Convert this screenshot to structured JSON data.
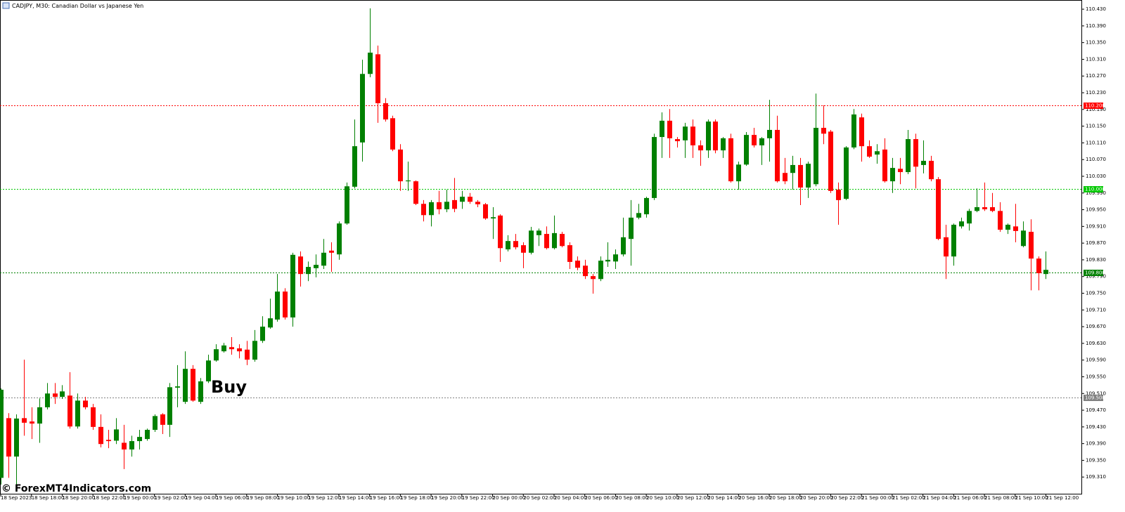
{
  "chart_data": {
    "type": "candlestick",
    "title": "CADJPY, M30:  Canadian Dollar vs Japanese Yen",
    "up_color": "#008000",
    "down_color": "#ff0000",
    "open": [
      109.308,
      109.451,
      109.359,
      109.451,
      109.443,
      109.438,
      109.477,
      109.51,
      109.502,
      109.505,
      109.431,
      109.493,
      109.477,
      109.43,
      109.399,
      109.397,
      109.392,
      109.376,
      109.396,
      109.401,
      109.423,
      109.46,
      109.435,
      109.524,
      109.49,
      109.569,
      109.49,
      109.539,
      109.589,
      109.611,
      109.621,
      109.618,
      109.615,
      109.591,
      109.636,
      109.668,
      109.687,
      109.754,
      109.692,
      109.838,
      109.796,
      109.81,
      109.816,
      109.852,
      109.843,
      109.917,
      110.005,
      110.111,
      110.275,
      110.322,
      110.205,
      110.169,
      110.094,
      110.018,
      110.018,
      109.964,
      109.937,
      109.968,
      109.951,
      109.973,
      109.969,
      109.981,
      109.969,
      109.963,
      109.929,
      109.936,
      109.855,
      109.875,
      109.865,
      109.847,
      109.889,
      109.892,
      109.858,
      109.892,
      109.865,
      109.828,
      109.816,
      109.791,
      109.784,
      109.826,
      109.826,
      109.843,
      109.88,
      109.931,
      109.939,
      109.978,
      110.124,
      110.163,
      110.119,
      110.116,
      110.149,
      110.104,
      110.092,
      110.161,
      110.092,
      110.121,
      110.018,
      110.058,
      110.129,
      110.104,
      110.121,
      110.141,
      110.038,
      110.038,
      110.057,
      110.003,
      110.011,
      110.146,
      110.137,
      109.998,
      109.976,
      110.099,
      110.171,
      110.102,
      110.082,
      110.094,
      110.018,
      110.048,
      110.04,
      110.119,
      110.057,
      110.067,
      110.023,
      109.884,
      109.838,
      109.91,
      109.917,
      109.947,
      109.956,
      109.956,
      109.947,
      109.902,
      109.91,
      109.863,
      109.897,
      109.833,
      109.796
    ],
    "high": [
      109.522,
      109.463,
      109.46,
      109.591,
      109.477,
      109.498,
      109.535,
      109.535,
      109.53,
      109.561,
      109.51,
      109.502,
      109.485,
      109.46,
      109.423,
      109.451,
      109.435,
      109.409,
      109.423,
      109.426,
      109.46,
      109.463,
      109.535,
      109.578,
      109.611,
      109.578,
      109.547,
      109.603,
      109.628,
      109.631,
      109.645,
      109.628,
      109.636,
      109.662,
      109.695,
      109.737,
      109.796,
      109.762,
      109.847,
      109.85,
      109.826,
      109.843,
      109.88,
      109.872,
      109.922,
      110.015,
      110.166,
      110.309,
      110.432,
      110.343,
      110.217,
      110.175,
      110.107,
      110.065,
      110.02,
      109.973,
      109.973,
      109.995,
      109.998,
      110.026,
      109.995,
      109.99,
      109.973,
      109.966,
      109.956,
      109.939,
      109.889,
      109.892,
      109.872,
      109.909,
      109.905,
      109.91,
      109.936,
      109.897,
      109.872,
      109.838,
      109.83,
      109.796,
      109.838,
      109.872,
      109.855,
      109.931,
      109.973,
      109.964,
      109.981,
      110.132,
      110.183,
      110.191,
      110.124,
      110.158,
      110.166,
      110.116,
      110.166,
      110.166,
      110.124,
      110.132,
      110.065,
      110.136,
      110.146,
      110.124,
      110.213,
      110.175,
      110.074,
      110.079,
      110.074,
      110.065,
      110.228,
      110.2,
      110.141,
      110.015,
      110.102,
      110.191,
      110.18,
      110.116,
      110.107,
      110.121,
      110.074,
      110.074,
      110.141,
      110.132,
      110.116,
      110.079,
      110.028,
      109.914,
      109.917,
      109.931,
      109.952,
      110.001,
      110.015,
      109.99,
      109.968,
      109.917,
      109.964,
      109.922,
      109.927,
      109.838,
      109.85
    ],
    "low": [
      109.292,
      109.308,
      109.292,
      109.409,
      109.401,
      109.392,
      109.472,
      109.485,
      109.497,
      109.426,
      109.426,
      109.472,
      109.423,
      109.381,
      109.379,
      109.389,
      109.329,
      109.359,
      109.376,
      109.397,
      109.418,
      109.413,
      109.406,
      109.477,
      109.485,
      109.49,
      109.485,
      109.535,
      109.586,
      109.608,
      109.603,
      109.594,
      109.578,
      109.586,
      109.631,
      109.665,
      109.682,
      109.687,
      109.67,
      109.766,
      109.779,
      109.788,
      109.808,
      109.801,
      109.83,
      109.914,
      110.001,
      110.065,
      110.267,
      110.158,
      110.161,
      110.09,
      109.995,
      109.995,
      109.961,
      109.922,
      109.91,
      109.939,
      109.944,
      109.944,
      109.952,
      109.964,
      109.956,
      109.926,
      109.88,
      109.825,
      109.85,
      109.855,
      109.81,
      109.843,
      109.863,
      109.855,
      109.855,
      109.86,
      109.808,
      109.805,
      109.784,
      109.749,
      109.779,
      109.813,
      109.808,
      109.838,
      109.816,
      109.927,
      109.931,
      109.973,
      110.074,
      110.074,
      110.099,
      110.074,
      110.074,
      110.055,
      110.074,
      110.085,
      110.074,
      110.015,
      109.998,
      110.055,
      110.099,
      110.057,
      110.065,
      110.015,
      110.011,
      109.998,
      109.961,
      109.978,
      110.006,
      110.107,
      109.99,
      109.914,
      109.973,
      110.095,
      110.065,
      110.074,
      110.06,
      110.015,
      109.99,
      110.011,
      110.035,
      110.001,
      110.037,
      110.018,
      109.877,
      109.784,
      109.816,
      109.905,
      109.9,
      109.944,
      109.947,
      109.944,
      109.897,
      109.892,
      109.872,
      109.86,
      109.757,
      109.757,
      109.784
    ],
    "close": [
      109.519,
      109.359,
      109.45,
      109.44,
      109.438,
      109.477,
      109.51,
      109.502,
      109.515,
      109.431,
      109.493,
      109.477,
      109.43,
      109.389,
      109.396,
      109.424,
      109.376,
      109.396,
      109.406,
      109.423,
      109.456,
      109.435,
      109.525,
      109.527,
      109.569,
      109.493,
      109.539,
      109.589,
      109.616,
      109.625,
      109.616,
      109.611,
      109.591,
      109.636,
      109.67,
      109.69,
      109.754,
      109.692,
      109.842,
      109.796,
      109.813,
      109.818,
      109.847,
      109.847,
      109.917,
      110.006,
      110.102,
      110.275,
      110.326,
      110.205,
      110.166,
      110.094,
      110.018,
      110.02,
      109.964,
      109.937,
      109.968,
      109.951,
      109.969,
      109.952,
      109.981,
      109.969,
      109.963,
      109.929,
      109.932,
      109.858,
      109.875,
      109.86,
      109.847,
      109.9,
      109.9,
      109.858,
      109.894,
      109.863,
      109.825,
      109.811,
      109.791,
      109.784,
      109.828,
      109.83,
      109.843,
      109.884,
      109.931,
      109.942,
      109.978,
      110.124,
      110.163,
      110.121,
      110.114,
      110.149,
      110.104,
      110.092,
      110.161,
      110.092,
      110.121,
      110.018,
      110.058,
      110.129,
      110.104,
      110.121,
      110.141,
      110.018,
      110.018,
      110.057,
      110.003,
      110.06,
      110.146,
      110.132,
      109.995,
      109.973,
      110.099,
      110.178,
      110.102,
      110.077,
      110.09,
      110.018,
      110.05,
      110.04,
      110.119,
      110.053,
      110.067,
      110.023,
      109.88,
      109.838,
      109.914,
      109.922,
      109.947,
      109.956,
      109.951,
      109.947,
      109.902,
      109.914,
      109.899,
      109.9,
      109.833,
      109.798,
      109.806
    ],
    "ylim": [
      109.27,
      110.452
    ],
    "yticks": [
      {
        "value": 110.43,
        "label": "110.430"
      },
      {
        "value": 110.39,
        "label": "110.390"
      },
      {
        "value": 110.35,
        "label": "110.350"
      },
      {
        "value": 110.31,
        "label": "110.310"
      },
      {
        "value": 110.27,
        "label": "110.270"
      },
      {
        "value": 110.23,
        "label": "110.230"
      },
      {
        "value": 110.19,
        "label": "110.190"
      },
      {
        "value": 110.15,
        "label": "110.150"
      },
      {
        "value": 110.11,
        "label": "110.110"
      },
      {
        "value": 110.07,
        "label": "110.070"
      },
      {
        "value": 110.03,
        "label": "110.030"
      },
      {
        "value": 109.99,
        "label": "109.990"
      },
      {
        "value": 109.95,
        "label": "109.950"
      },
      {
        "value": 109.91,
        "label": "109.910"
      },
      {
        "value": 109.87,
        "label": "109.870"
      },
      {
        "value": 109.83,
        "label": "109.830"
      },
      {
        "value": 109.79,
        "label": "109.790"
      },
      {
        "value": 109.75,
        "label": "109.750"
      },
      {
        "value": 109.71,
        "label": "109.710"
      },
      {
        "value": 109.67,
        "label": "109.670"
      },
      {
        "value": 109.63,
        "label": "109.630"
      },
      {
        "value": 109.59,
        "label": "109.590"
      },
      {
        "value": 109.55,
        "label": "109.550"
      },
      {
        "value": 109.51,
        "label": "109.510"
      },
      {
        "value": 109.47,
        "label": "109.470"
      },
      {
        "value": 109.43,
        "label": "109.430"
      },
      {
        "value": 109.39,
        "label": "109.390"
      },
      {
        "value": 109.35,
        "label": "109.350"
      },
      {
        "value": 109.31,
        "label": "109.310"
      }
    ],
    "xticks": [
      {
        "value": 0,
        "label": "18 Sep 2023"
      },
      {
        "value": 4,
        "label": "18 Sep 18:00"
      },
      {
        "value": 8,
        "label": "18 Sep 20:00"
      },
      {
        "value": 12,
        "label": "18 Sep 22:00"
      },
      {
        "value": 16,
        "label": "19 Sep 00:00"
      },
      {
        "value": 20,
        "label": "19 Sep 02:00"
      },
      {
        "value": 24,
        "label": "19 Sep 04:00"
      },
      {
        "value": 28,
        "label": "19 Sep 06:00"
      },
      {
        "value": 32,
        "label": "19 Sep 08:00"
      },
      {
        "value": 36,
        "label": "19 Sep 10:00"
      },
      {
        "value": 40,
        "label": "19 Sep 12:00"
      },
      {
        "value": 44,
        "label": "19 Sep 14:00"
      },
      {
        "value": 48,
        "label": "19 Sep 16:00"
      },
      {
        "value": 52,
        "label": "19 Sep 18:00"
      },
      {
        "value": 56,
        "label": "19 Sep 20:00"
      },
      {
        "value": 60,
        "label": "19 Sep 22:00"
      },
      {
        "value": 64,
        "label": "20 Sep 00:00"
      },
      {
        "value": 68,
        "label": "20 Sep 02:00"
      },
      {
        "value": 72,
        "label": "20 Sep 04:00"
      },
      {
        "value": 76,
        "label": "20 Sep 06:00"
      },
      {
        "value": 80,
        "label": "20 Sep 08:00"
      },
      {
        "value": 84,
        "label": "20 Sep 10:00"
      },
      {
        "value": 88,
        "label": "20 Sep 12:00"
      },
      {
        "value": 92,
        "label": "20 Sep 14:00"
      },
      {
        "value": 96,
        "label": "20 Sep 16:00"
      },
      {
        "value": 100,
        "label": "20 Sep 18:00"
      },
      {
        "value": 104,
        "label": "20 Sep 20:00"
      },
      {
        "value": 108,
        "label": "20 Sep 22:00"
      },
      {
        "value": 112,
        "label": "21 Sep 00:00"
      },
      {
        "value": 116,
        "label": "21 Sep 02:00"
      },
      {
        "value": 120,
        "label": "21 Sep 04:00"
      },
      {
        "value": 124,
        "label": "21 Sep 06:00"
      },
      {
        "value": 128,
        "label": "21 Sep 08:00"
      },
      {
        "value": 132,
        "label": "21 Sep 10:00"
      },
      {
        "value": 136,
        "label": "21 Sep 12:00"
      }
    ],
    "levels": [
      {
        "value": 110.2,
        "label": "110.200",
        "color": "#ff0000"
      },
      {
        "value": 110.0,
        "label": "110.000",
        "color": "#00c800"
      },
      {
        "value": 109.8,
        "label": "109.800",
        "color": "#008000"
      },
      {
        "value": 109.5,
        "label": "109.500",
        "color": "#808080"
      }
    ],
    "annotation": "Buy",
    "watermark": "© ForexMT4Indicators.com"
  }
}
